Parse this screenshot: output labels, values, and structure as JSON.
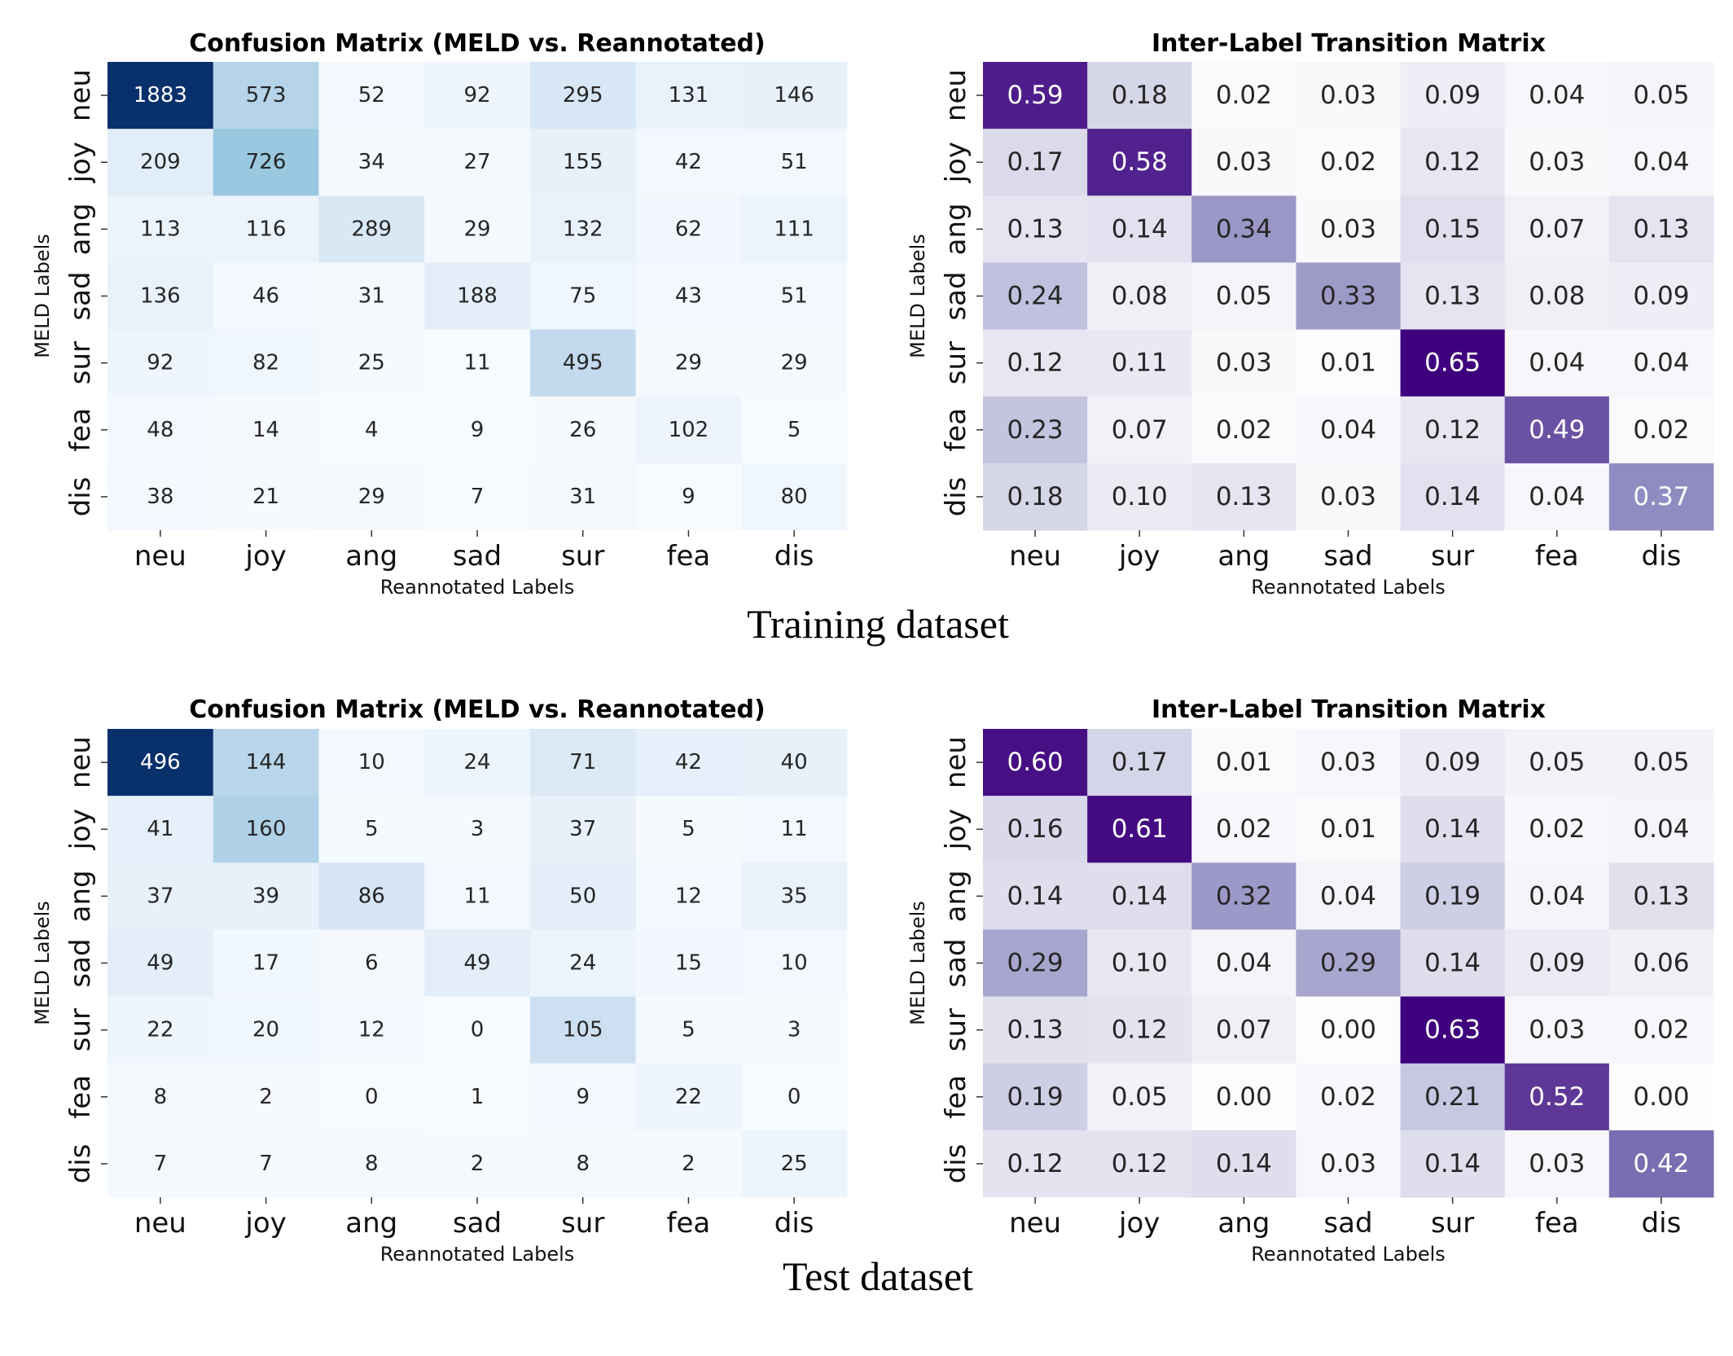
{
  "colors": {
    "blues_low": "#f7fbff",
    "blues_mid": "#6baed6",
    "blues_high": "#08306b",
    "purples_low": "#fcfbfd",
    "purples_mid": "#9e9ac8",
    "purples_high": "#3f007d"
  },
  "sections": [
    {
      "caption": "Training dataset"
    },
    {
      "caption": "Test dataset"
    }
  ],
  "chart_data": [
    {
      "type": "heatmap",
      "section": "Training dataset",
      "title": "Confusion Matrix (MELD vs. Reannotated)",
      "xlabel": "Reannotated Labels",
      "ylabel": "MELD Labels",
      "x_categories": [
        "neu",
        "joy",
        "ang",
        "sad",
        "sur",
        "fea",
        "dis"
      ],
      "y_categories": [
        "neu",
        "joy",
        "ang",
        "sad",
        "sur",
        "fea",
        "dis"
      ],
      "colormap": "Blues",
      "value_format": "int",
      "values": [
        [
          1883,
          573,
          52,
          92,
          295,
          131,
          146
        ],
        [
          209,
          726,
          34,
          27,
          155,
          42,
          51
        ],
        [
          113,
          116,
          289,
          29,
          132,
          62,
          111
        ],
        [
          136,
          46,
          31,
          188,
          75,
          43,
          51
        ],
        [
          92,
          82,
          25,
          11,
          495,
          29,
          29
        ],
        [
          48,
          14,
          4,
          9,
          26,
          102,
          5
        ],
        [
          38,
          21,
          29,
          7,
          31,
          9,
          80
        ]
      ]
    },
    {
      "type": "heatmap",
      "section": "Training dataset",
      "title": "Inter-Label Transition Matrix",
      "xlabel": "Reannotated Labels",
      "ylabel": "MELD Labels",
      "x_categories": [
        "neu",
        "joy",
        "ang",
        "sad",
        "sur",
        "fea",
        "dis"
      ],
      "y_categories": [
        "neu",
        "joy",
        "ang",
        "sad",
        "sur",
        "fea",
        "dis"
      ],
      "colormap": "Purples",
      "value_format": "2f",
      "values": [
        [
          0.59,
          0.18,
          0.02,
          0.03,
          0.09,
          0.04,
          0.05
        ],
        [
          0.17,
          0.58,
          0.03,
          0.02,
          0.12,
          0.03,
          0.04
        ],
        [
          0.13,
          0.14,
          0.34,
          0.03,
          0.15,
          0.07,
          0.13
        ],
        [
          0.24,
          0.08,
          0.05,
          0.33,
          0.13,
          0.08,
          0.09
        ],
        [
          0.12,
          0.11,
          0.03,
          0.01,
          0.65,
          0.04,
          0.04
        ],
        [
          0.23,
          0.07,
          0.02,
          0.04,
          0.12,
          0.49,
          0.02
        ],
        [
          0.18,
          0.1,
          0.13,
          0.03,
          0.14,
          0.04,
          0.37
        ]
      ]
    },
    {
      "type": "heatmap",
      "section": "Test dataset",
      "title": "Confusion Matrix (MELD vs. Reannotated)",
      "xlabel": "Reannotated Labels",
      "ylabel": "MELD Labels",
      "x_categories": [
        "neu",
        "joy",
        "ang",
        "sad",
        "sur",
        "fea",
        "dis"
      ],
      "y_categories": [
        "neu",
        "joy",
        "ang",
        "sad",
        "sur",
        "fea",
        "dis"
      ],
      "colormap": "Blues",
      "value_format": "int",
      "values": [
        [
          496,
          144,
          10,
          24,
          71,
          42,
          40
        ],
        [
          41,
          160,
          5,
          3,
          37,
          5,
          11
        ],
        [
          37,
          39,
          86,
          11,
          50,
          12,
          35
        ],
        [
          49,
          17,
          6,
          49,
          24,
          15,
          10
        ],
        [
          22,
          20,
          12,
          0,
          105,
          5,
          3
        ],
        [
          8,
          2,
          0,
          1,
          9,
          22,
          0
        ],
        [
          7,
          7,
          8,
          2,
          8,
          2,
          25
        ]
      ]
    },
    {
      "type": "heatmap",
      "section": "Test dataset",
      "title": "Inter-Label Transition Matrix",
      "xlabel": "Reannotated Labels",
      "ylabel": "MELD Labels",
      "x_categories": [
        "neu",
        "joy",
        "ang",
        "sad",
        "sur",
        "fea",
        "dis"
      ],
      "y_categories": [
        "neu",
        "joy",
        "ang",
        "sad",
        "sur",
        "fea",
        "dis"
      ],
      "colormap": "Purples",
      "value_format": "2f",
      "values": [
        [
          0.6,
          0.17,
          0.01,
          0.03,
          0.09,
          0.05,
          0.05
        ],
        [
          0.16,
          0.61,
          0.02,
          0.01,
          0.14,
          0.02,
          0.04
        ],
        [
          0.14,
          0.14,
          0.32,
          0.04,
          0.19,
          0.04,
          0.13
        ],
        [
          0.29,
          0.1,
          0.04,
          0.29,
          0.14,
          0.09,
          0.06
        ],
        [
          0.13,
          0.12,
          0.07,
          0.0,
          0.63,
          0.03,
          0.02
        ],
        [
          0.19,
          0.05,
          0.0,
          0.02,
          0.21,
          0.52,
          0.0
        ],
        [
          0.12,
          0.12,
          0.14,
          0.03,
          0.14,
          0.03,
          0.42
        ]
      ]
    }
  ]
}
